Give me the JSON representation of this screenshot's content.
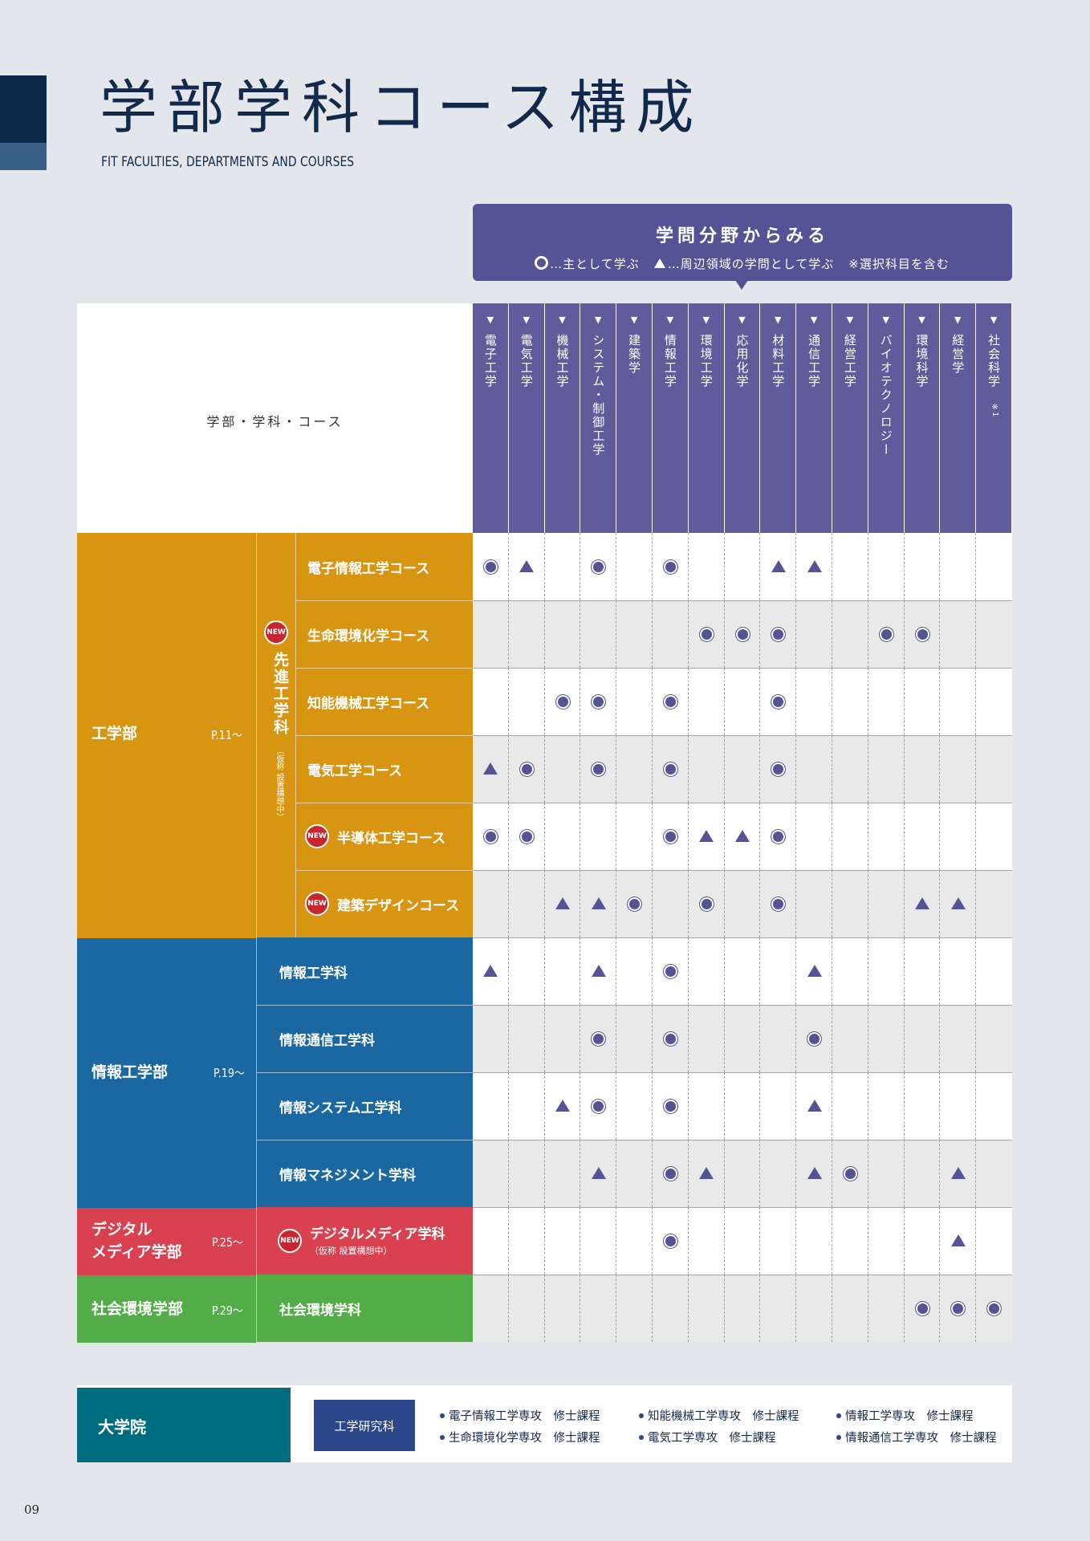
{
  "title": "学部学科コース構成",
  "subtitle": "FIT FACULTIES, DEPARTMENTS AND COURSES",
  "axis_banner": {
    "title": "学問分野からみる",
    "legend_main": "…主として学ぶ",
    "legend_sub": "…周辺領域の学問として学ぶ",
    "legend_note": "※選択科目を含む"
  },
  "header_label": "学部・学科・コース",
  "columns": [
    {
      "label": "電子工学",
      "note": ""
    },
    {
      "label": "電気工学",
      "note": ""
    },
    {
      "label": "機械工学",
      "note": ""
    },
    {
      "label": "システム・制御工学",
      "note": ""
    },
    {
      "label": "建築学",
      "note": ""
    },
    {
      "label": "情報工学",
      "note": ""
    },
    {
      "label": "環境工学",
      "note": ""
    },
    {
      "label": "応用化学",
      "note": ""
    },
    {
      "label": "材料工学",
      "note": ""
    },
    {
      "label": "通信工学",
      "note": ""
    },
    {
      "label": "経営工学",
      "note": ""
    },
    {
      "label": "バイオテクノロジー",
      "note": ""
    },
    {
      "label": "環境科学",
      "note": ""
    },
    {
      "label": "経営学",
      "note": ""
    },
    {
      "label": "社会科学",
      "note": "※1"
    }
  ],
  "faculties": {
    "engineering": {
      "name": "工学部",
      "page": "P.11～",
      "color": "#d89512"
    },
    "info": {
      "name": "情報工学部",
      "page": "P.19～",
      "color": "#1a67a2"
    },
    "digital": {
      "name": "デジタル\nメディア学部",
      "page": "P.25～",
      "color": "#d94150"
    },
    "social": {
      "name": "社会環境学部",
      "page": "P.29～",
      "color": "#52ac47"
    }
  },
  "advanced_dept": {
    "name": "先進工学科",
    "note": "（仮称 設置構想中）",
    "badge": "NEW"
  },
  "rows": [
    {
      "label": "電子情報工学コース",
      "new": false,
      "marks": [
        "main",
        "sub",
        "",
        "main",
        "",
        "main",
        "",
        "",
        "sub",
        "sub",
        "",
        "",
        "",
        "",
        ""
      ]
    },
    {
      "label": "生命環境化学コース",
      "new": false,
      "marks": [
        "",
        "",
        "",
        "",
        "",
        "",
        "main",
        "main",
        "main",
        "",
        "",
        "main",
        "main",
        "",
        ""
      ]
    },
    {
      "label": "知能機械工学コース",
      "new": false,
      "marks": [
        "",
        "",
        "main",
        "main",
        "",
        "main",
        "",
        "",
        "main",
        "",
        "",
        "",
        "",
        "",
        ""
      ]
    },
    {
      "label": "電気工学コース",
      "new": false,
      "marks": [
        "sub",
        "main",
        "",
        "main",
        "",
        "main",
        "",
        "",
        "main",
        "",
        "",
        "",
        "",
        "",
        ""
      ]
    },
    {
      "label": "半導体工学コース",
      "new": true,
      "marks": [
        "main",
        "main",
        "",
        "",
        "",
        "main",
        "sub",
        "sub",
        "main",
        "",
        "",
        "",
        "",
        "",
        ""
      ]
    },
    {
      "label": "建築デザインコース",
      "new": true,
      "marks": [
        "",
        "",
        "sub",
        "sub",
        "main",
        "",
        "main",
        "",
        "main",
        "",
        "",
        "",
        "sub",
        "sub",
        ""
      ]
    },
    {
      "label": "情報工学科",
      "new": false,
      "marks": [
        "sub",
        "",
        "",
        "sub",
        "",
        "main",
        "",
        "",
        "",
        "sub",
        "",
        "",
        "",
        "",
        ""
      ]
    },
    {
      "label": "情報通信工学科",
      "new": false,
      "marks": [
        "",
        "",
        "",
        "main",
        "",
        "main",
        "",
        "",
        "",
        "main",
        "",
        "",
        "",
        "",
        ""
      ]
    },
    {
      "label": "情報システム工学科",
      "new": false,
      "marks": [
        "",
        "",
        "sub",
        "main",
        "",
        "main",
        "",
        "",
        "",
        "sub",
        "",
        "",
        "",
        "",
        ""
      ]
    },
    {
      "label": "情報マネジメント学科",
      "new": false,
      "marks": [
        "",
        "",
        "",
        "sub",
        "",
        "main",
        "sub",
        "",
        "",
        "sub",
        "main",
        "",
        "",
        "sub",
        ""
      ]
    },
    {
      "label": "デジタルメディア学科",
      "new": true,
      "note": "（仮称 設置構想中）",
      "marks": [
        "",
        "",
        "",
        "",
        "",
        "main",
        "",
        "",
        "",
        "",
        "",
        "",
        "",
        "sub",
        ""
      ]
    },
    {
      "label": "社会環境学科",
      "new": false,
      "marks": [
        "",
        "",
        "",
        "",
        "",
        "",
        "",
        "",
        "",
        "",
        "",
        "",
        "main",
        "main",
        "main"
      ]
    }
  ],
  "new_badge": "NEW",
  "graduate": {
    "label": "大学院",
    "school": "工学研究科",
    "items": [
      "電子情報工学専攻　修士課程",
      "生命環境化学専攻　修士課程",
      "知能機械工学専攻　修士課程",
      "電気工学専攻　修士課程",
      "情報工学専攻　修士課程",
      "情報通信工学専攻　修士課程"
    ]
  },
  "page_number": "09",
  "colors": {
    "navy": "#13294b",
    "column_purple": "#5f5c9c",
    "marker": "#545395",
    "grad_teal": "#006c80",
    "grad_blue": "#2b4789",
    "new_red": "#c8262e"
  },
  "icons": {
    "main": "double-circle-icon",
    "sub": "triangle-icon",
    "column_arrow": "down-triangle-icon"
  }
}
